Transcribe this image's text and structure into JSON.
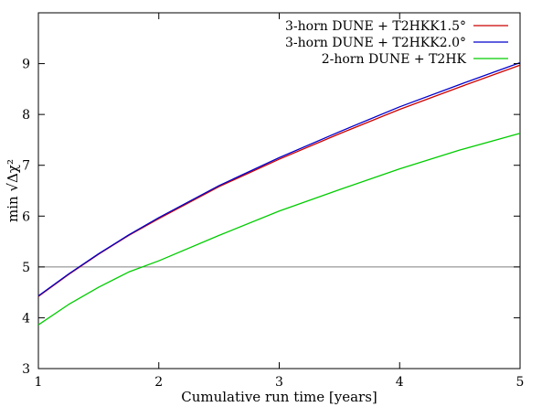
{
  "chart_data": {
    "type": "line",
    "title": "",
    "xlabel": "Cumulative run time [years]",
    "ylabel": "min √Δχ²",
    "xlim": [
      1,
      5
    ],
    "ylim": [
      3,
      10
    ],
    "x_ticks": [
      1,
      2,
      3,
      4,
      5
    ],
    "y_ticks": [
      3,
      4,
      5,
      6,
      7,
      8,
      9
    ],
    "x_tick_labels": [
      "1",
      "2",
      "3",
      "4",
      "5"
    ],
    "y_tick_labels": [
      "3",
      "4",
      "5",
      "6",
      "7",
      "8",
      "9"
    ],
    "grid": false,
    "legend_position": "top-right",
    "reference_line": {
      "y": 5,
      "color": "#808080"
    },
    "series": [
      {
        "name": "3-horn DUNE + T2HKK1.5°",
        "color": "#cc0000",
        "x": [
          1,
          1.25,
          1.5,
          1.75,
          2,
          2.5,
          3,
          3.5,
          4,
          4.5,
          5
        ],
        "y": [
          4.42,
          4.85,
          5.25,
          5.62,
          5.95,
          6.58,
          7.12,
          7.62,
          8.1,
          8.54,
          8.97
        ]
      },
      {
        "name": "3-horn DUNE + T2HKK2.0°",
        "color": "#0000cc",
        "x": [
          1,
          1.25,
          1.5,
          1.75,
          2,
          2.5,
          3,
          3.5,
          4,
          4.5,
          5
        ],
        "y": [
          4.43,
          4.86,
          5.26,
          5.63,
          5.97,
          6.6,
          7.15,
          7.66,
          8.15,
          8.59,
          9.02
        ]
      },
      {
        "name": "2-horn DUNE + T2HK",
        "color": "#00cc00",
        "x": [
          1,
          1.25,
          1.5,
          1.75,
          2,
          2.5,
          3,
          3.5,
          4,
          4.5,
          5
        ],
        "y": [
          3.86,
          4.26,
          4.6,
          4.9,
          5.12,
          5.62,
          6.1,
          6.52,
          6.93,
          7.3,
          7.63
        ]
      }
    ]
  }
}
